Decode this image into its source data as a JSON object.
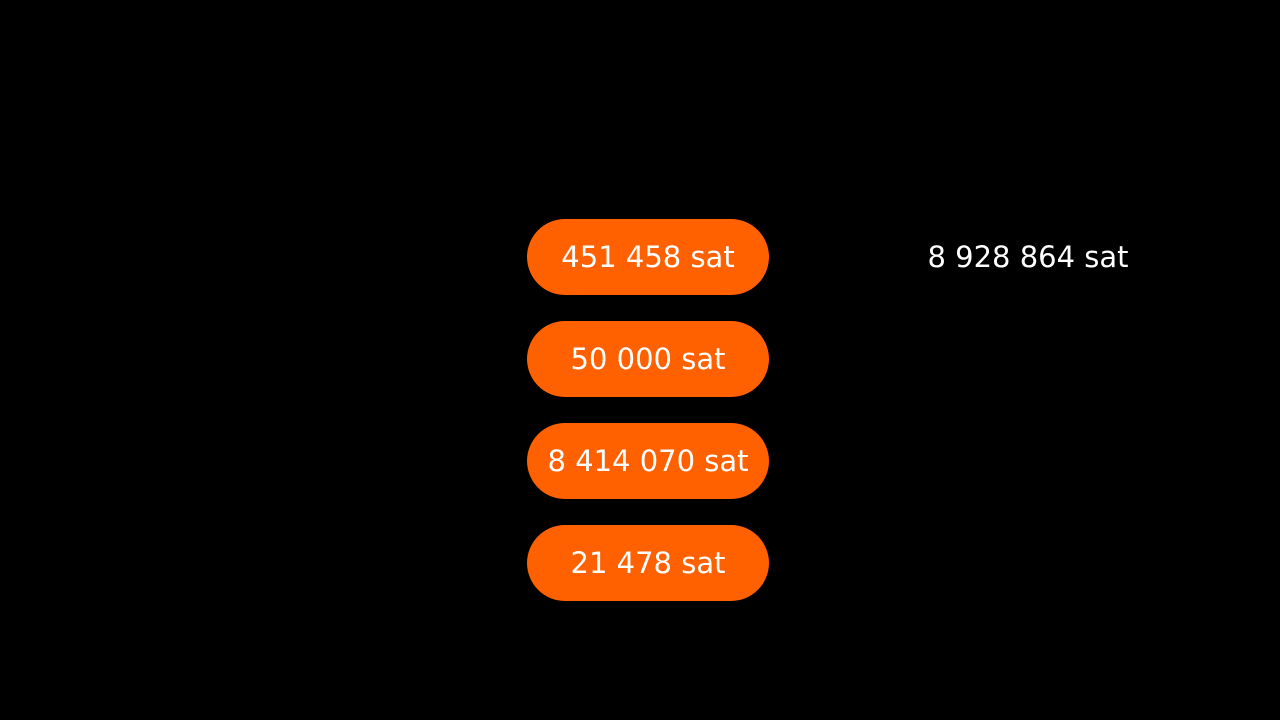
{
  "colors": {
    "background": "#000000",
    "pill_fill": "#ff6000",
    "text": "#ffffff"
  },
  "inputs": [
    {
      "amount": "451 458 sat"
    },
    {
      "amount": "50 000 sat"
    },
    {
      "amount": "8 414 070 sat"
    },
    {
      "amount": "21 478 sat"
    }
  ],
  "total": {
    "amount": "8 928 864 sat"
  }
}
